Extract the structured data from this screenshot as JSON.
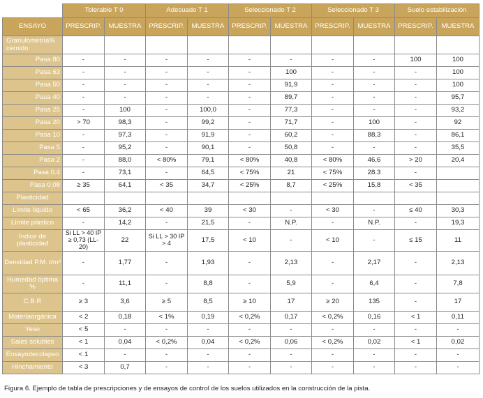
{
  "table": {
    "group_headers": [
      "Tolerable T 0",
      "Adecuado T 1",
      "Seleccionado T 2",
      "Seleccionado T 3",
      "Suelo estabilización"
    ],
    "ensayo_label": "ENSAYO",
    "sub_headers": [
      "PRESCRIP.",
      "MUESTRA",
      "PRESCRIP.",
      "MUESTRA",
      "PRESCRIP.",
      "MUESTRA",
      "PRESCRIP.",
      "MUESTRA",
      "PRESCRIP.",
      "MUESTRA"
    ],
    "rows": [
      {
        "label": "Granulometría% cernido",
        "align": "left",
        "values": [
          "",
          "",
          "",
          "",
          "",
          "",
          "",
          "",
          "",
          ""
        ]
      },
      {
        "label": "Pasa 80",
        "align": "right",
        "values": [
          "-",
          "-",
          "-",
          "-",
          "-",
          "-",
          "-",
          "-",
          "100",
          "100"
        ]
      },
      {
        "label": "Pasa 63",
        "align": "right",
        "values": [
          "-",
          "-",
          "-",
          "-",
          "-",
          "100",
          "-",
          "-",
          "-",
          "100"
        ]
      },
      {
        "label": "Pasa 50",
        "align": "right",
        "values": [
          "-",
          "-",
          "-",
          "-",
          "-",
          "91,9",
          "-",
          "-",
          "-",
          "100"
        ]
      },
      {
        "label": "Pasa 40",
        "align": "right",
        "values": [
          "-",
          "-",
          "-",
          "-",
          "-",
          "89,7",
          "-",
          "-",
          "-",
          "95,7"
        ]
      },
      {
        "label": "Pasa 25",
        "align": "right",
        "values": [
          "-",
          "100",
          "-",
          "100,0",
          "-",
          "77,3",
          "-",
          "-",
          "-",
          "93,2"
        ]
      },
      {
        "label": "Pasa 20",
        "align": "right",
        "values": [
          "> 70",
          "98,3",
          "-",
          "99,2",
          "-",
          "71,7",
          "-",
          "100",
          "-",
          "92"
        ]
      },
      {
        "label": "Pasa 10",
        "align": "right",
        "values": [
          "-",
          "97,3",
          "-",
          "91,9",
          "-",
          "60,2",
          "-",
          "88,3",
          "-",
          "86,1"
        ]
      },
      {
        "label": "Pasa 5",
        "align": "right",
        "values": [
          "-",
          "95,2",
          "-",
          "90,1",
          "-",
          "50,8",
          "-",
          "-",
          "-",
          "35,5"
        ]
      },
      {
        "label": "Pasa 2",
        "align": "right",
        "values": [
          "-",
          "88,0",
          "< 80%",
          "79,1",
          "< 80%",
          "40,8",
          "< 80%",
          "46,6",
          "> 20",
          "20,4"
        ]
      },
      {
        "label": "Pasa 0.4",
        "align": "right",
        "values": [
          "-",
          "73,1",
          "-",
          "64,5",
          "< 75%",
          "21",
          "< 75%",
          "28.3",
          "-",
          ""
        ]
      },
      {
        "label": "Pasa 0.08",
        "align": "right",
        "values": [
          "≥ 35",
          "64,1",
          "< 35",
          "34,7",
          "< 25%",
          "8,7",
          "< 25%",
          "15,8",
          "< 35",
          ""
        ]
      },
      {
        "label": "Plasticidad",
        "align": "center",
        "values": [
          "",
          "",
          "",
          "",
          "",
          "",
          "",
          "",
          "",
          ""
        ]
      },
      {
        "label": "Límite líquido",
        "align": "center",
        "values": [
          "< 65",
          "36,2",
          "< 40",
          "39",
          "< 30",
          "-",
          "< 30",
          "-",
          "≤ 40",
          "30,3"
        ]
      },
      {
        "label": "Límite plástico",
        "align": "center",
        "values": [
          "-",
          "14,2",
          "-",
          "21,5",
          "-",
          "N.P.",
          "-",
          "N.P.",
          "-",
          "19,3"
        ]
      },
      {
        "label": "Índice de plasticidad",
        "align": "center",
        "values": [
          "Si LL > 40 IP ≥ 0,73 (LL-20)",
          "22",
          "Si LL > 30 IP > 4",
          "17,5",
          "< 10",
          "-",
          "< 10",
          "-",
          "≤ 15",
          "11"
        ]
      },
      {
        "label": "Densidad P.M. t/m³",
        "align": "center",
        "values": [
          "-",
          "1,77",
          "-",
          "1,93",
          "-",
          "2,13",
          "-",
          "2,17",
          "-",
          "2,13"
        ]
      },
      {
        "label": "Humedad óptima %",
        "align": "center",
        "values": [
          "-",
          "11,1",
          "-",
          "8,8",
          "-",
          "5,9",
          "-",
          "6,4",
          "-",
          "7,8"
        ]
      },
      {
        "label": "C.B.R",
        "align": "center",
        "values": [
          "≥ 3",
          "3,6",
          "≥ 5",
          "8,5",
          "≥ 10",
          "17",
          "≥ 20",
          "135",
          "-",
          "17"
        ]
      },
      {
        "label": "Materiaorgánica",
        "align": "center",
        "values": [
          "< 2",
          "0,18",
          "< 1%",
          "0,19",
          "< 0,2%",
          "0,17",
          "< 0,2%",
          "0,16",
          "< 1",
          "0,11"
        ]
      },
      {
        "label": "Yeso",
        "align": "center",
        "values": [
          "< 5",
          "-",
          "-",
          "-",
          "-",
          "-",
          "-",
          "-",
          "-",
          "-"
        ]
      },
      {
        "label": "Sales solubles",
        "align": "center",
        "values": [
          "< 1",
          "0,04",
          "< 0,2%",
          "0,04",
          "< 0,2%",
          "0,06",
          "< 0,2%",
          "0,02",
          "< 1",
          "0,02"
        ]
      },
      {
        "label": "Ensayodecolapso",
        "align": "center",
        "values": [
          "< 1",
          "-",
          "-",
          "-",
          "-",
          "-",
          "-",
          "-",
          "-",
          "-"
        ]
      },
      {
        "label": "Hinchamiento",
        "align": "center",
        "values": [
          "< 3",
          "0,7",
          "-",
          "-",
          "-",
          "-",
          "-",
          "-",
          "-",
          "-"
        ]
      }
    ]
  },
  "caption": "Figura 6. Ejemplo de tabla de prescripciones y de ensayos de control de los suelos utilizados en la construcción de la pista.",
  "colors": {
    "header": "#c9a45b",
    "label_column": "#ddc48c",
    "border": "#8a8a8a"
  }
}
